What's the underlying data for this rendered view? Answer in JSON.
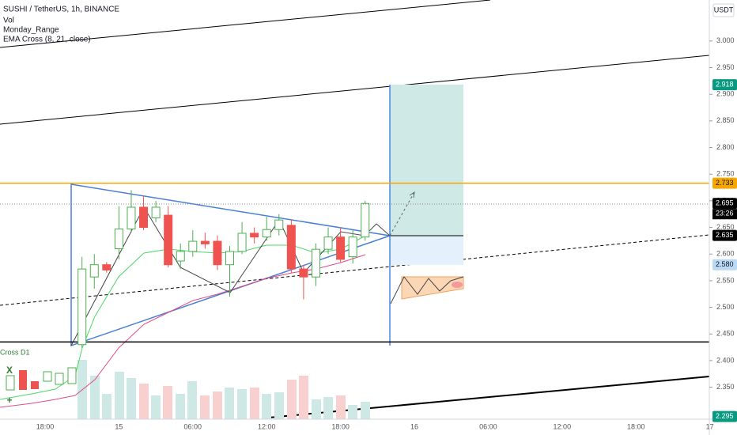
{
  "header": {
    "symbol": "SUSHI / TetherUS, 1h, BINANCE",
    "indicators": [
      "Vol",
      "Monday_Range",
      "EMA Cross (8, 21, close)"
    ],
    "pane_label": "Cross D1",
    "currency": "USDT",
    "time_label": "23:26"
  },
  "chart_data": {
    "type": "candlestick",
    "categories": [
      null,
      null,
      null,
      "18:00",
      null,
      null,
      null,
      null,
      null,
      "15",
      null,
      null,
      null,
      null,
      null,
      "06:00",
      null,
      null,
      null,
      null,
      null,
      "12:00",
      null,
      null,
      null,
      null,
      null,
      "18:00",
      null,
      null,
      null,
      null,
      null,
      "16",
      null,
      null,
      null,
      null,
      null,
      "06:00",
      null,
      null,
      null,
      null,
      null,
      "12:00",
      null,
      null,
      null,
      null,
      null,
      "18:00",
      null,
      null,
      null,
      null,
      null,
      "17"
    ],
    "open": [
      null,
      null,
      null,
      null,
      null,
      null,
      2.43,
      2.557,
      2.58,
      2.61,
      2.647,
      2.688,
      2.668,
      2.673,
      2.587,
      2.605,
      2.624,
      2.624,
      2.58,
      2.605,
      2.639,
      2.632,
      2.646,
      2.654,
      2.572,
      2.557,
      2.609,
      2.632,
      2.595,
      2.632,
      null,
      null,
      null,
      null,
      null,
      null,
      null,
      null,
      null,
      null,
      null,
      null,
      null,
      null,
      null,
      null,
      null,
      null,
      null,
      null,
      null,
      null,
      null,
      null,
      null,
      null,
      null,
      null
    ],
    "high": [
      null,
      null,
      null,
      null,
      null,
      null,
      2.595,
      2.6,
      2.585,
      2.69,
      2.72,
      2.71,
      2.7,
      2.69,
      2.62,
      2.645,
      2.64,
      2.635,
      2.615,
      2.66,
      2.65,
      2.67,
      2.675,
      2.665,
      2.58,
      2.62,
      2.65,
      2.65,
      2.645,
      2.7,
      null,
      null,
      null,
      null,
      null,
      null,
      null,
      null,
      null,
      null,
      null,
      null,
      null,
      null,
      null,
      null,
      null,
      null,
      null,
      null,
      null,
      null,
      null,
      null,
      null,
      null,
      null,
      null
    ],
    "low": [
      null,
      null,
      null,
      null,
      null,
      null,
      2.424,
      2.535,
      2.565,
      2.59,
      2.64,
      2.645,
      2.66,
      2.575,
      2.572,
      2.595,
      2.61,
      2.57,
      2.52,
      2.6,
      2.62,
      2.625,
      2.635,
      2.565,
      2.515,
      2.54,
      2.6,
      2.585,
      2.582,
      2.625,
      null,
      null,
      null,
      null,
      null,
      null,
      null,
      null,
      null,
      null,
      null,
      null,
      null,
      null,
      null,
      null,
      null,
      null,
      null,
      null,
      null,
      null,
      null,
      null,
      null,
      null,
      null,
      null
    ],
    "close": [
      null,
      null,
      null,
      null,
      null,
      null,
      2.572,
      2.58,
      2.57,
      2.647,
      2.688,
      2.65,
      2.688,
      2.58,
      2.605,
      2.624,
      2.619,
      2.58,
      2.605,
      2.639,
      2.632,
      2.646,
      2.664,
      2.572,
      2.557,
      2.609,
      2.632,
      2.59,
      2.632,
      2.695,
      null,
      null,
      null,
      null,
      null,
      null,
      null,
      null,
      null,
      null,
      null,
      null,
      null,
      null,
      null,
      null,
      null,
      null,
      null,
      null,
      null,
      null,
      null,
      null,
      null,
      null,
      null,
      null
    ],
    "up_color": "#4caf50",
    "down_color": "#ef5350",
    "ylim": [
      2.29,
      3.077
    ],
    "yticks": [
      {
        "value": 3.0,
        "label": "3.000"
      },
      {
        "value": 2.95,
        "label": "2.950"
      },
      {
        "value": 2.9,
        "label": "2.900"
      },
      {
        "value": 2.85,
        "label": "2.850"
      },
      {
        "value": 2.8,
        "label": "2.800"
      },
      {
        "value": 2.75,
        "label": "2.750"
      },
      {
        "value": 2.7,
        "label": "2.700"
      },
      {
        "value": 2.65,
        "label": "2.650"
      },
      {
        "value": 2.6,
        "label": "2.600"
      },
      {
        "value": 2.55,
        "label": "2.550"
      },
      {
        "value": 2.5,
        "label": "2.500"
      },
      {
        "value": 2.45,
        "label": "2.450"
      },
      {
        "value": 2.4,
        "label": "2.400"
      },
      {
        "value": 2.35,
        "label": "2.350"
      }
    ],
    "hlines": [
      {
        "value": 2.733,
        "color": "#f7a600"
      },
      {
        "value": 2.435,
        "color": "#000000"
      }
    ],
    "price_labels": [
      {
        "value": 2.918,
        "label": "2.918",
        "color": "#089981",
        "text_color": "#ffffff"
      },
      {
        "value": 2.733,
        "label": "2.733",
        "color": "#f7a600",
        "text_color": "#131722"
      },
      {
        "value": 2.695,
        "label": "2.695",
        "color": "#000000",
        "text_color": "#ffffff"
      },
      {
        "value": 2.635,
        "label": "2.635",
        "color": "#000000",
        "text_color": "#ffffff"
      },
      {
        "value": 2.58,
        "label": "2.580",
        "color": "#bbd9f5",
        "text_color": "#131722"
      },
      {
        "value": 2.295,
        "label": "2.295",
        "color": "#089981",
        "text_color": "#ffffff"
      }
    ]
  }
}
